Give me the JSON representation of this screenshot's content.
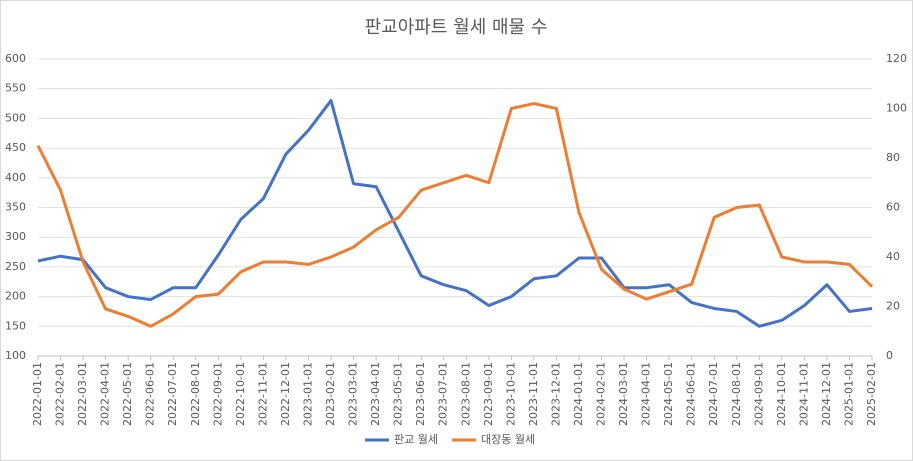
{
  "chart_data": {
    "type": "line",
    "title": "판교아파트 월세 매물 수",
    "categories": [
      "2022-01-01",
      "2022-02-01",
      "2022-03-01",
      "2022-04-01",
      "2022-05-01",
      "2022-06-01",
      "2022-07-01",
      "2022-08-01",
      "2022-09-01",
      "2022-10-01",
      "2022-11-01",
      "2022-12-01",
      "2023-01-01",
      "2023-02-01",
      "2023-03-01",
      "2023-04-01",
      "2023-05-01",
      "2023-06-01",
      "2023-07-01",
      "2023-08-01",
      "2023-09-01",
      "2023-10-01",
      "2023-11-01",
      "2023-12-01",
      "2024-01-01",
      "2024-02-01",
      "2024-03-01",
      "2024-04-01",
      "2024-05-01",
      "2024-06-01",
      "2024-07-01",
      "2024-08-01",
      "2024-09-01",
      "2024-10-01",
      "2024-11-01",
      "2024-12-01",
      "2025-01-01",
      "2025-02-01"
    ],
    "series": [
      {
        "name": "판교 월세",
        "color": "#4472c4",
        "values": [
          260,
          268,
          262,
          215,
          200,
          195,
          215,
          215,
          270,
          330,
          365,
          440,
          480,
          530,
          390,
          385,
          310,
          235,
          220,
          210,
          185,
          200,
          230,
          235,
          265,
          265,
          215,
          215,
          220,
          190,
          180,
          175,
          150,
          160,
          185,
          220,
          175,
          180
        ]
      },
      {
        "name": "대장동 월세",
        "color": "#ed7d31",
        "axis": "y2",
        "values": [
          85,
          67,
          38,
          19,
          16,
          12,
          17,
          24,
          25,
          34,
          38,
          38,
          37,
          40,
          44,
          51,
          56,
          67,
          70,
          73,
          70,
          100,
          102,
          100,
          58,
          35,
          27,
          23,
          26,
          29,
          56,
          60,
          61,
          40,
          38,
          38,
          37,
          28
        ]
      }
    ],
    "ylim": [
      100,
      600
    ],
    "yticks": [
      100,
      150,
      200,
      250,
      300,
      350,
      400,
      450,
      500,
      550,
      600
    ],
    "y2lim": [
      0,
      120
    ],
    "y2ticks": [
      0,
      20,
      40,
      60,
      80,
      100,
      120
    ],
    "legend": "bottom"
  }
}
